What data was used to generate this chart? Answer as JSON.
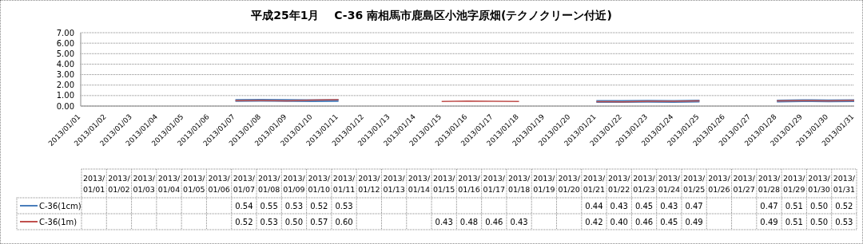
{
  "chart_data": {
    "type": "line",
    "title": "平成25年1月　 C-36 南相馬市鹿島区小池字原畑(テクノクリーン付近)",
    "categories": [
      "2013/01/01",
      "2013/01/02",
      "2013/01/03",
      "2013/01/04",
      "2013/01/05",
      "2013/01/06",
      "2013/01/07",
      "2013/01/08",
      "2013/01/09",
      "2013/01/10",
      "2013/01/11",
      "2013/01/12",
      "2013/01/13",
      "2013/01/14",
      "2013/01/15",
      "2013/01/16",
      "2013/01/17",
      "2013/01/18",
      "2013/01/19",
      "2013/01/20",
      "2013/01/21",
      "2013/01/22",
      "2013/01/23",
      "2013/01/24",
      "2013/01/25",
      "2013/01/26",
      "2013/01/27",
      "2013/01/28",
      "2013/01/29",
      "2013/01/30",
      "2013/01/31"
    ],
    "series": [
      {
        "name": "C-36(1cm)",
        "color": "#4a7ebb",
        "values": [
          null,
          null,
          null,
          null,
          null,
          null,
          0.54,
          0.55,
          0.53,
          0.52,
          0.53,
          null,
          null,
          null,
          null,
          null,
          null,
          null,
          null,
          null,
          0.44,
          0.43,
          0.45,
          0.43,
          0.47,
          null,
          null,
          0.47,
          0.51,
          0.5,
          0.52
        ],
        "value_labels": [
          null,
          null,
          null,
          null,
          null,
          null,
          "0.54",
          "0.55",
          "0.53",
          "0.52",
          "0.53",
          null,
          null,
          null,
          null,
          null,
          null,
          null,
          null,
          null,
          "0.44",
          "0.43",
          "0.45",
          "0.43",
          "0.47",
          null,
          null,
          "0.47",
          "0.51",
          "0.50",
          "0.52"
        ]
      },
      {
        "name": "C-36(1m)",
        "color": "#c0504d",
        "values": [
          null,
          null,
          null,
          null,
          null,
          null,
          0.52,
          0.53,
          0.5,
          0.57,
          0.6,
          null,
          null,
          null,
          0.43,
          0.48,
          0.46,
          0.43,
          null,
          null,
          0.42,
          0.4,
          0.46,
          0.45,
          0.49,
          null,
          null,
          0.49,
          0.51,
          0.5,
          0.53
        ],
        "value_labels": [
          null,
          null,
          null,
          null,
          null,
          null,
          "0.52",
          "0.53",
          "0.50",
          "0.57",
          "0.60",
          null,
          null,
          null,
          "0.43",
          "0.48",
          "0.46",
          "0.43",
          null,
          null,
          "0.42",
          "0.40",
          "0.46",
          "0.45",
          "0.49",
          null,
          null,
          "0.49",
          "0.51",
          "0.50",
          "0.53"
        ]
      }
    ],
    "ylim": [
      0,
      7
    ],
    "yticks": [
      {
        "value": 0,
        "label": "0.00"
      },
      {
        "value": 1,
        "label": "1.00"
      },
      {
        "value": 2,
        "label": "2.00"
      },
      {
        "value": 3,
        "label": "3.00"
      },
      {
        "value": 4,
        "label": "4.00"
      },
      {
        "value": 5,
        "label": "5.00"
      },
      {
        "value": 6,
        "label": "6.00"
      },
      {
        "value": 7,
        "label": "7.00"
      }
    ],
    "grid": "y",
    "legend": "bottom",
    "marker": "none",
    "line_style": "solid"
  }
}
